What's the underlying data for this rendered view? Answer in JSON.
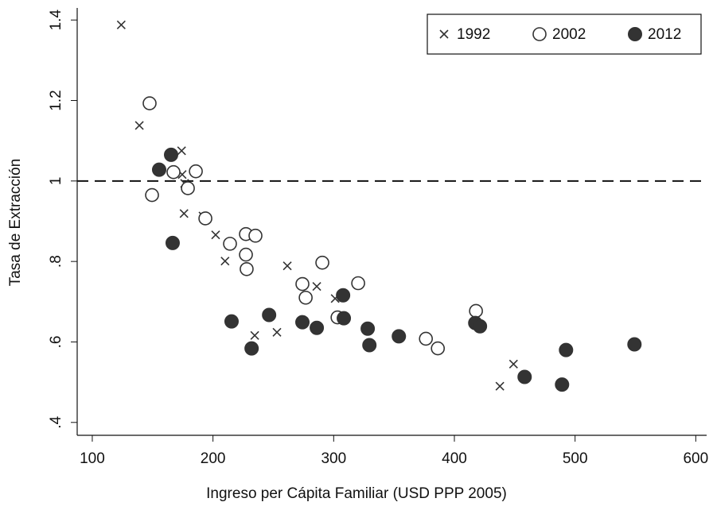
{
  "chart_data": {
    "type": "scatter",
    "x_label": "Ingreso per Cápita Familiar (USD PPP 2005)",
    "y_label": "Tasa de Extracción",
    "xlim": [
      87.5,
      609
    ],
    "xticks": [
      100,
      200,
      300,
      400,
      500,
      600
    ],
    "ylim": [
      0.368,
      1.43
    ],
    "yticks": [
      {
        "value": 0.4,
        "label": ".4"
      },
      {
        "value": 0.6,
        "label": ".6"
      },
      {
        "value": 0.8,
        "label": ".8"
      },
      1,
      1.2,
      1.4
    ],
    "hline": 1,
    "legend": "top-right",
    "series": [
      {
        "name": "1992",
        "marker": "x",
        "color": "#333333",
        "x": [
          124,
          139,
          174,
          174.5,
          176.5,
          176,
          191.7,
          202.2,
          210,
          234.6,
          253,
          261.6,
          286,
          301.2,
          449,
          437.7
        ],
        "values": [
          1.388,
          1.138,
          1.075,
          1.016,
          0.994,
          0.919,
          0.913,
          0.866,
          0.801,
          0.616,
          0.624,
          0.789,
          0.738,
          0.708,
          0.545,
          0.49
        ]
      },
      {
        "name": "2002",
        "marker": "open-circle",
        "color": "#333333",
        "x": [
          147.5,
          149.5,
          167.3,
          185.8,
          179.2,
          193.7,
          214.1,
          227.3,
          235.2,
          227.3,
          227.9,
          290.6,
          274.1,
          276.8,
          320.3,
          303.2,
          376.4,
          386.3,
          417.9
        ],
        "values": [
          1.193,
          0.965,
          1.022,
          1.024,
          0.982,
          0.907,
          0.844,
          0.868,
          0.864,
          0.817,
          0.781,
          0.797,
          0.744,
          0.71,
          0.746,
          0.661,
          0.608,
          0.584,
          0.677
        ]
      },
      {
        "name": "2012",
        "marker": "filled-circle",
        "color": "#333333",
        "x": [
          165.3,
          155.4,
          166.6,
          215.4,
          232,
          246.5,
          274.1,
          286,
          307.8,
          308.4,
          328.2,
          329.6,
          354,
          417.3,
          421.2,
          458.2,
          489.2,
          492.5,
          549.2
        ],
        "values": [
          1.065,
          1.028,
          0.846,
          0.651,
          0.584,
          0.667,
          0.649,
          0.635,
          0.716,
          0.659,
          0.633,
          0.592,
          0.614,
          0.647,
          0.639,
          0.513,
          0.494,
          0.58,
          0.594
        ]
      }
    ]
  }
}
